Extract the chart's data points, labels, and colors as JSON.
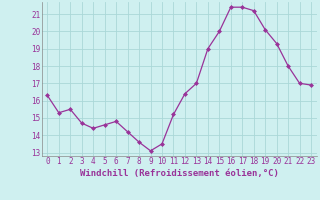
{
  "x": [
    0,
    1,
    2,
    3,
    4,
    5,
    6,
    7,
    8,
    9,
    10,
    11,
    12,
    13,
    14,
    15,
    16,
    17,
    18,
    19,
    20,
    21,
    22,
    23
  ],
  "y": [
    16.3,
    15.3,
    15.5,
    14.7,
    14.4,
    14.6,
    14.8,
    14.2,
    13.6,
    13.1,
    13.5,
    15.2,
    16.4,
    17.0,
    19.0,
    20.0,
    21.4,
    21.4,
    21.2,
    20.1,
    19.3,
    18.0,
    17.0,
    16.9
  ],
  "line_color": "#993399",
  "marker": "D",
  "marker_size": 2.0,
  "bg_color": "#cff0f0",
  "grid_color": "#aad8d8",
  "tick_label_color": "#993399",
  "xlabel": "Windchill (Refroidissement éolien,°C)",
  "xlabel_color": "#993399",
  "ylim_min": 12.8,
  "ylim_max": 21.7,
  "yticks": [
    13,
    14,
    15,
    16,
    17,
    18,
    19,
    20,
    21
  ],
  "xticks": [
    0,
    1,
    2,
    3,
    4,
    5,
    6,
    7,
    8,
    9,
    10,
    11,
    12,
    13,
    14,
    15,
    16,
    17,
    18,
    19,
    20,
    21,
    22,
    23
  ],
  "tick_fontsize": 5.5,
  "xlabel_fontsize": 6.5,
  "linewidth": 0.9
}
